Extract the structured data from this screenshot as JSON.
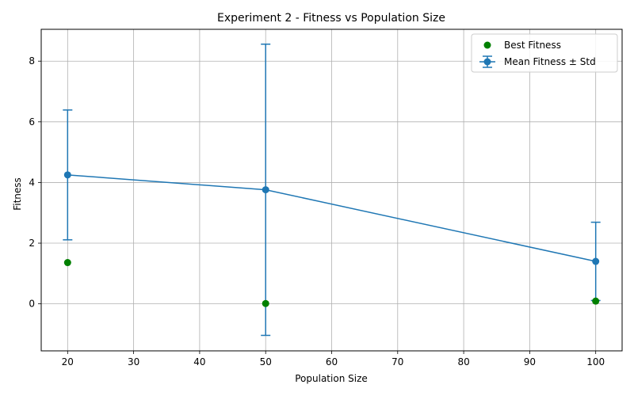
{
  "chart_data": {
    "type": "line",
    "title": "Experiment 2 - Fitness vs Population Size",
    "xlabel": "Population Size",
    "ylabel": "Fitness",
    "xlim": [
      16,
      104
    ],
    "ylim": [
      -1.55,
      9.05
    ],
    "xticks": [
      20,
      30,
      40,
      50,
      60,
      70,
      80,
      90,
      100
    ],
    "yticks": [
      0,
      2,
      4,
      6,
      8
    ],
    "grid": true,
    "legend_position": "upper right",
    "series": [
      {
        "name": "Mean Fitness ± Std",
        "kind": "errorbar-line",
        "color": "#1f77b4",
        "x": [
          20,
          50,
          100
        ],
        "y": [
          4.25,
          3.76,
          1.4
        ],
        "yerr": [
          2.14,
          4.8,
          1.29
        ]
      },
      {
        "name": "Best Fitness",
        "kind": "scatter",
        "color": "#008000",
        "x": [
          20,
          50,
          100
        ],
        "y": [
          1.36,
          0.01,
          0.09
        ]
      }
    ]
  }
}
